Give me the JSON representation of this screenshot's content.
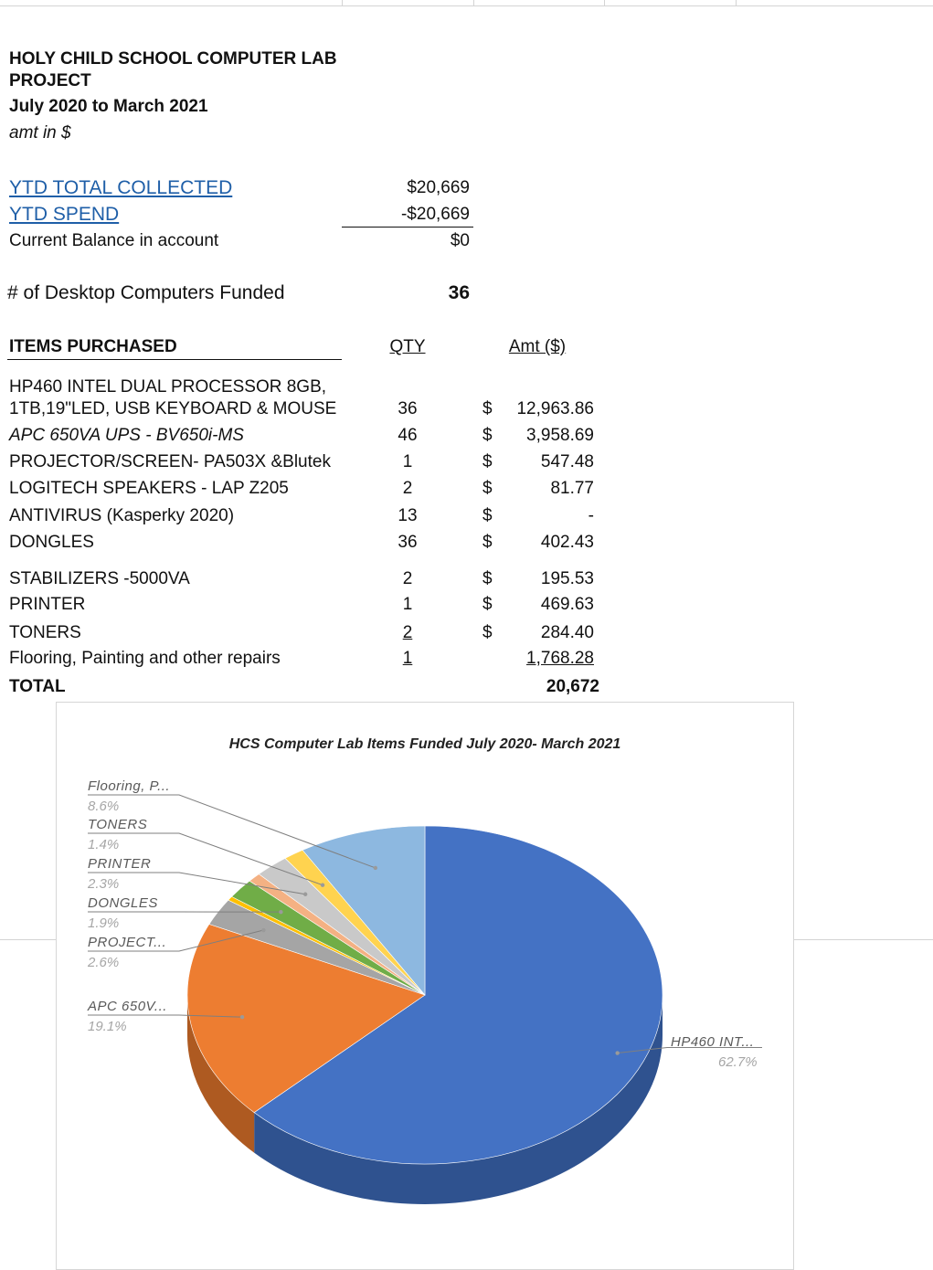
{
  "sheet": {
    "title_line1": "HOLY CHILD SCHOOL COMPUTER LAB",
    "title_line2": "PROJECT",
    "period": "July 2020 to March 2021",
    "units": "amt in $"
  },
  "summary": {
    "collected_label": "YTD TOTAL COLLECTED",
    "collected_value": "$20,669",
    "spend_label": "YTD SPEND",
    "spend_value": "-$20,669",
    "balance_label": "Current Balance in account",
    "balance_value": "$0",
    "computers_label": "# of Desktop Computers Funded",
    "computers_value": "36"
  },
  "table": {
    "header_items": "ITEMS PURCHASED",
    "header_qty": "QTY",
    "header_amt": "Amt ($)",
    "rows": [
      {
        "item": "HP460 INTEL DUAL PROCESSOR 8GB,",
        "item2": "1TB,19\"LED, USB KEYBOARD & MOUSE",
        "qty": "36",
        "cur": "$",
        "amt": "12,963.86"
      },
      {
        "item": "APC 650VA UPS - BV650i-MS",
        "qty": "46",
        "cur": "$",
        "amt": "3,958.69"
      },
      {
        "item": "PROJECTOR/SCREEN- PA503X &Blutek",
        "qty": "1",
        "cur": "$",
        "amt": "547.48"
      },
      {
        "item": "LOGITECH SPEAKERS - LAP Z205",
        "qty": "2",
        "cur": "$",
        "amt": "81.77"
      },
      {
        "item": "ANTIVIRUS (Kasperky 2020)",
        "qty": "13",
        "cur": "$",
        "amt": "-"
      },
      {
        "item": "DONGLES",
        "qty": "36",
        "cur": "$",
        "amt": "402.43"
      },
      {
        "item": "STABILIZERS -5000VA",
        "qty": "2",
        "cur": "$",
        "amt": "195.53"
      },
      {
        "item": "PRINTER",
        "qty": "1",
        "cur": "$",
        "amt": "469.63"
      },
      {
        "item": "TONERS",
        "qty": "2",
        "cur": "$",
        "amt": "284.40"
      },
      {
        "item": "Flooring, Painting and other repairs",
        "qty": "1",
        "cur": "",
        "amt": "1,768.28"
      }
    ],
    "total_label": "TOTAL",
    "total_value": "20,672"
  },
  "chart_data": {
    "type": "pie",
    "title": "HCS Computer Lab Items Funded July 2020- March 2021",
    "slices": [
      {
        "label": "HP460 INT...",
        "percent": 62.7,
        "percent_label": "62.7%",
        "color": "#4472c4",
        "side": "#2f528f"
      },
      {
        "label": "APC 650V...",
        "percent": 19.1,
        "percent_label": "19.1%",
        "color": "#ed7d31",
        "side": "#ae5a21"
      },
      {
        "label": "PROJECT...",
        "percent": 2.6,
        "percent_label": "2.6%",
        "color": "#a5a5a5",
        "side": "#787878"
      },
      {
        "label": "",
        "percent": 0.4,
        "percent_label": "",
        "color": "#ffc000",
        "side": "#bf9000"
      },
      {
        "label": "",
        "percent": 0.0,
        "percent_label": "",
        "color": "#5b9bd5",
        "side": "#41719c"
      },
      {
        "label": "DONGLES",
        "percent": 1.9,
        "percent_label": "1.9%",
        "color": "#70ad47",
        "side": "#507e32"
      },
      {
        "label": "",
        "percent": 0.9,
        "percent_label": "",
        "color": "#f4b183",
        "side": "#c5865a"
      },
      {
        "label": "PRINTER",
        "percent": 2.3,
        "percent_label": "2.3%",
        "color": "#c9c9c9",
        "side": "#999999"
      },
      {
        "label": "TONERS",
        "percent": 1.4,
        "percent_label": "1.4%",
        "color": "#ffd34f",
        "side": "#c9a030"
      },
      {
        "label": "Flooring, P...",
        "percent": 8.6,
        "percent_label": "8.6%",
        "color": "#8db8e0",
        "side": "#6a93b8"
      }
    ]
  }
}
